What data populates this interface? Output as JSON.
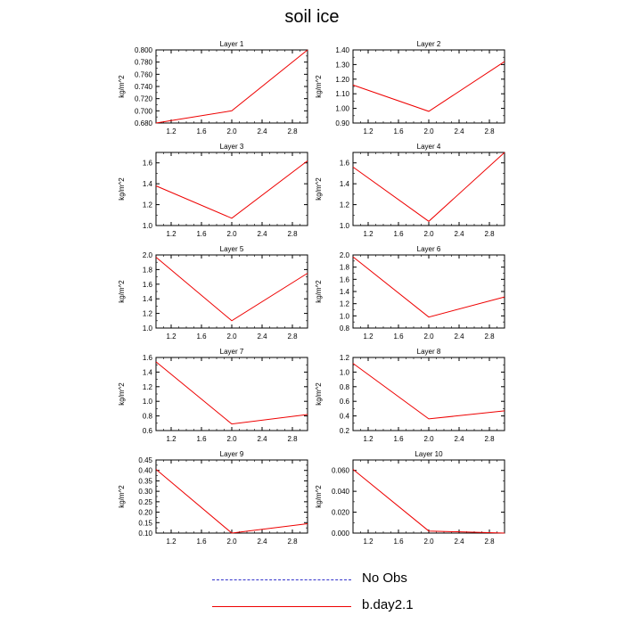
{
  "figure": {
    "title": "soil ice"
  },
  "legend": [
    {
      "label": "No Obs",
      "style": "dashed",
      "color": "#3333cc"
    },
    {
      "label": "b.day2.1",
      "style": "solid",
      "color": "#ee0000"
    }
  ],
  "chart_data": [
    {
      "type": "line",
      "title": "Layer 1",
      "xlabel": "",
      "ylabel": "kg/m^2",
      "xlim": [
        1.0,
        3.0
      ],
      "ylim": [
        0.68,
        0.8
      ],
      "xticks": [
        "1.2",
        "1.6",
        "2.0",
        "2.4",
        "2.8"
      ],
      "yticks": [
        "0.680",
        "0.700",
        "0.720",
        "0.740",
        "0.760",
        "0.780",
        "0.800"
      ],
      "x": [
        1.0,
        2.0,
        3.0
      ],
      "series": [
        {
          "name": "b.day2.1",
          "color": "#ee0000",
          "values": [
            0.68,
            0.7,
            0.8
          ]
        }
      ]
    },
    {
      "type": "line",
      "title": "Layer 2",
      "xlabel": "",
      "ylabel": "kg/m^2",
      "xlim": [
        1.0,
        3.0
      ],
      "ylim": [
        0.9,
        1.4
      ],
      "xticks": [
        "1.2",
        "1.6",
        "2.0",
        "2.4",
        "2.8"
      ],
      "yticks": [
        "0.90",
        "1.00",
        "1.10",
        "1.20",
        "1.30",
        "1.40"
      ],
      "x": [
        1.0,
        2.0,
        3.0
      ],
      "series": [
        {
          "name": "b.day2.1",
          "color": "#ee0000",
          "values": [
            1.16,
            0.98,
            1.32
          ]
        }
      ]
    },
    {
      "type": "line",
      "title": "Layer 3",
      "xlabel": "",
      "ylabel": "kg/m^2",
      "xlim": [
        1.0,
        3.0
      ],
      "ylim": [
        1.0,
        1.7
      ],
      "xticks": [
        "1.2",
        "1.6",
        "2.0",
        "2.4",
        "2.8"
      ],
      "yticks": [
        "1.0",
        "1.2",
        "1.4",
        "1.6"
      ],
      "x": [
        1.0,
        2.0,
        3.0
      ],
      "series": [
        {
          "name": "b.day2.1",
          "color": "#ee0000",
          "values": [
            1.38,
            1.07,
            1.62
          ]
        }
      ]
    },
    {
      "type": "line",
      "title": "Layer 4",
      "xlabel": "",
      "ylabel": "kg/m^2",
      "xlim": [
        1.0,
        3.0
      ],
      "ylim": [
        1.0,
        1.7
      ],
      "xticks": [
        "1.2",
        "1.6",
        "2.0",
        "2.4",
        "2.8"
      ],
      "yticks": [
        "1.0",
        "1.2",
        "1.4",
        "1.6"
      ],
      "x": [
        1.0,
        2.0,
        3.0
      ],
      "series": [
        {
          "name": "b.day2.1",
          "color": "#ee0000",
          "values": [
            1.56,
            1.04,
            1.7
          ]
        }
      ]
    },
    {
      "type": "line",
      "title": "Layer 5",
      "xlabel": "",
      "ylabel": "kg/m^2",
      "xlim": [
        1.0,
        3.0
      ],
      "ylim": [
        1.0,
        2.0
      ],
      "xticks": [
        "1.2",
        "1.6",
        "2.0",
        "2.4",
        "2.8"
      ],
      "yticks": [
        "1.0",
        "1.2",
        "1.4",
        "1.6",
        "1.8",
        "2.0"
      ],
      "x": [
        1.0,
        2.0,
        3.0
      ],
      "series": [
        {
          "name": "b.day2.1",
          "color": "#ee0000",
          "values": [
            1.97,
            1.1,
            1.75
          ]
        }
      ]
    },
    {
      "type": "line",
      "title": "Layer 6",
      "xlabel": "",
      "ylabel": "kg/m^2",
      "xlim": [
        1.0,
        3.0
      ],
      "ylim": [
        0.8,
        2.0
      ],
      "xticks": [
        "1.2",
        "1.6",
        "2.0",
        "2.4",
        "2.8"
      ],
      "yticks": [
        "0.8",
        "1.0",
        "1.2",
        "1.4",
        "1.6",
        "1.8",
        "2.0"
      ],
      "x": [
        1.0,
        2.0,
        3.0
      ],
      "series": [
        {
          "name": "b.day2.1",
          "color": "#ee0000",
          "values": [
            1.97,
            0.98,
            1.31
          ]
        }
      ]
    },
    {
      "type": "line",
      "title": "Layer 7",
      "xlabel": "",
      "ylabel": "kg/m^2",
      "xlim": [
        1.0,
        3.0
      ],
      "ylim": [
        0.6,
        1.6
      ],
      "xticks": [
        "1.2",
        "1.6",
        "2.0",
        "2.4",
        "2.8"
      ],
      "yticks": [
        "0.6",
        "0.8",
        "1.0",
        "1.2",
        "1.4",
        "1.6"
      ],
      "x": [
        1.0,
        2.0,
        3.0
      ],
      "series": [
        {
          "name": "b.day2.1",
          "color": "#ee0000",
          "values": [
            1.54,
            0.69,
            0.82
          ]
        }
      ]
    },
    {
      "type": "line",
      "title": "Layer 8",
      "xlabel": "",
      "ylabel": "kg/m^2",
      "xlim": [
        1.0,
        3.0
      ],
      "ylim": [
        0.2,
        1.2
      ],
      "xticks": [
        "1.2",
        "1.6",
        "2.0",
        "2.4",
        "2.8"
      ],
      "yticks": [
        "0.2",
        "0.4",
        "0.6",
        "0.8",
        "1.0",
        "1.2"
      ],
      "x": [
        1.0,
        2.0,
        3.0
      ],
      "series": [
        {
          "name": "b.day2.1",
          "color": "#ee0000",
          "values": [
            1.12,
            0.36,
            0.47
          ]
        }
      ]
    },
    {
      "type": "line",
      "title": "Layer 9",
      "xlabel": "",
      "ylabel": "kg/m^2",
      "xlim": [
        1.0,
        3.0
      ],
      "ylim": [
        0.1,
        0.45
      ],
      "xticks": [
        "1.2",
        "1.6",
        "2.0",
        "2.4",
        "2.8"
      ],
      "yticks": [
        "0.10",
        "0.15",
        "0.20",
        "0.25",
        "0.30",
        "0.35",
        "0.40",
        "0.45"
      ],
      "x": [
        1.0,
        2.0,
        3.0
      ],
      "series": [
        {
          "name": "b.day2.1",
          "color": "#ee0000",
          "values": [
            0.405,
            0.1,
            0.145
          ]
        }
      ]
    },
    {
      "type": "line",
      "title": "Layer 10",
      "xlabel": "",
      "ylabel": "kg/m^2",
      "xlim": [
        1.0,
        3.0
      ],
      "ylim": [
        0.0,
        0.07
      ],
      "xticks": [
        "1.2",
        "1.6",
        "2.0",
        "2.4",
        "2.8"
      ],
      "yticks": [
        "0.000",
        "0.020",
        "0.040",
        "0.060"
      ],
      "x": [
        1.0,
        2.0,
        3.0
      ],
      "series": [
        {
          "name": "b.day2.1",
          "color": "#ee0000",
          "values": [
            0.061,
            0.002,
            0.0
          ]
        }
      ]
    }
  ]
}
